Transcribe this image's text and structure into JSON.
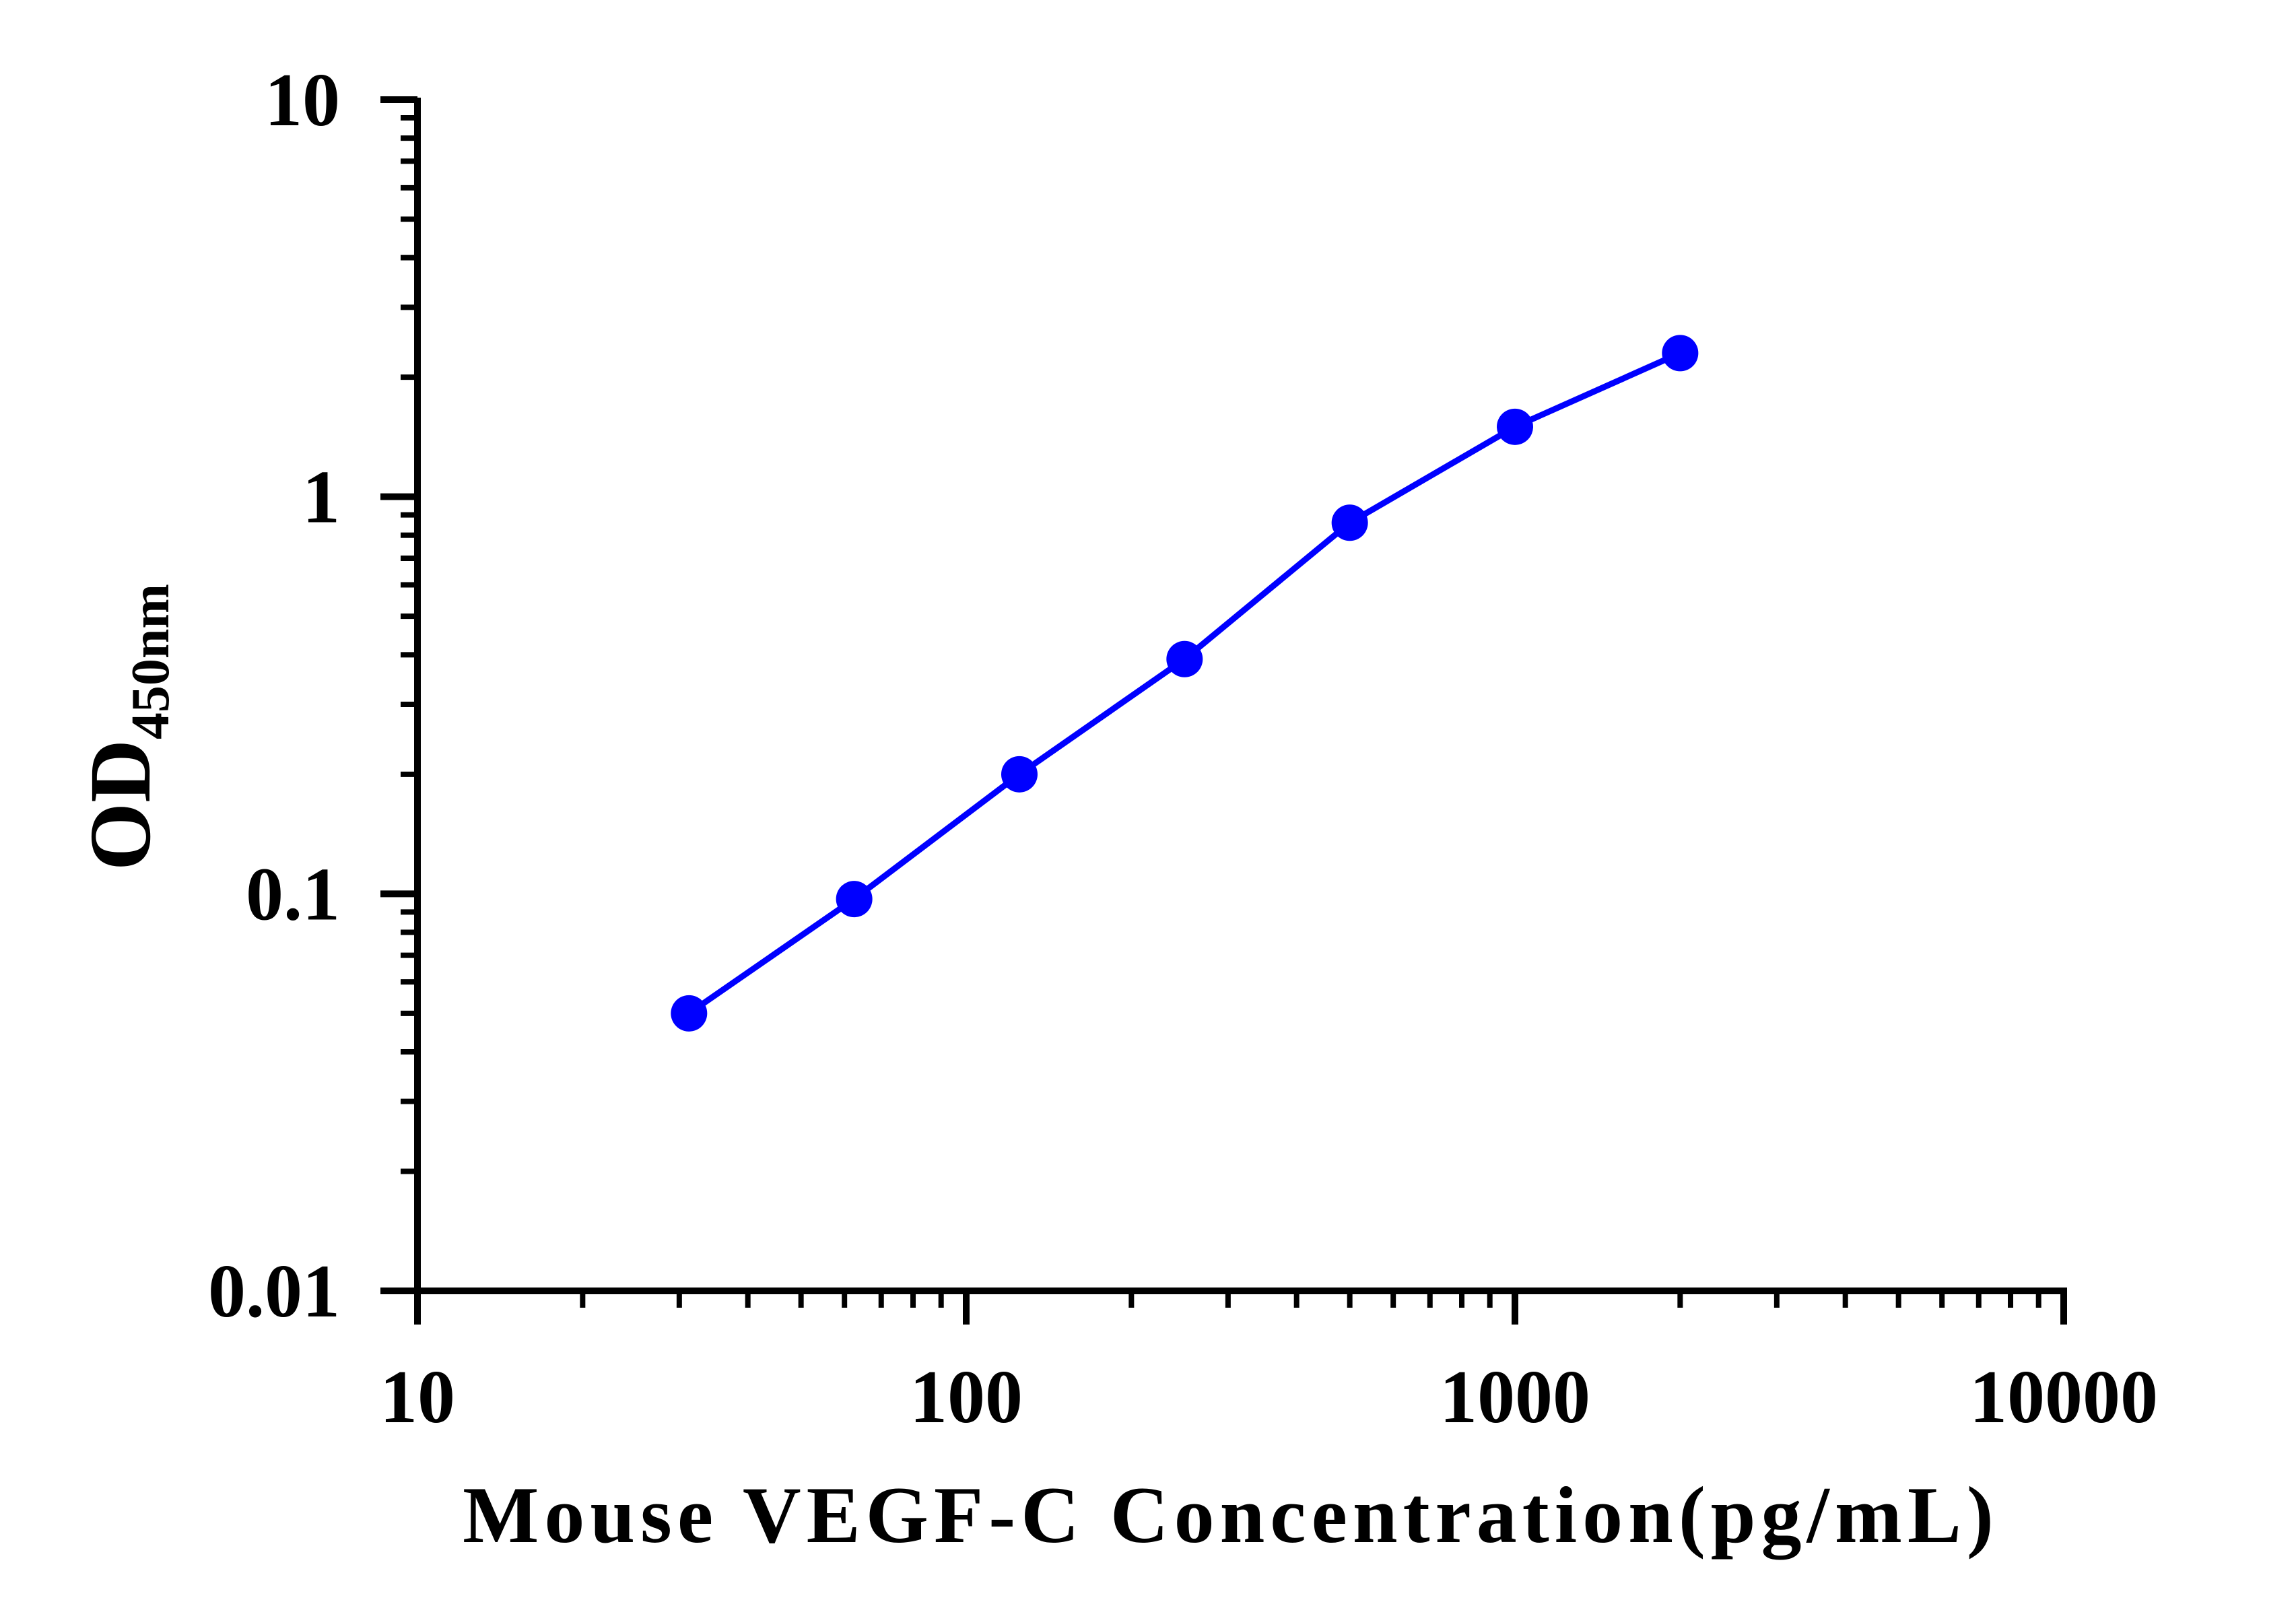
{
  "chart_data": {
    "type": "line",
    "title": "",
    "xlabel": "Mouse VEGF-C Concentration(pg/mL)",
    "ylabel": {
      "main": "OD",
      "sub": "450nm"
    },
    "xscale": "log",
    "yscale": "log",
    "xlim": [
      10,
      10000
    ],
    "ylim": [
      0.01,
      10
    ],
    "x_ticks": [
      "10",
      "100",
      "1000",
      "10000"
    ],
    "y_ticks": [
      "0.01",
      "0.1",
      "1",
      "10"
    ],
    "grid": false,
    "legend": "none",
    "series": [
      {
        "color": "#0000ff",
        "marker": "circle",
        "x": [
          31.25,
          62.5,
          125,
          250,
          500,
          1000,
          2000
        ],
        "y": [
          0.05,
          0.097,
          0.2,
          0.39,
          0.86,
          1.5,
          2.3
        ]
      }
    ]
  }
}
